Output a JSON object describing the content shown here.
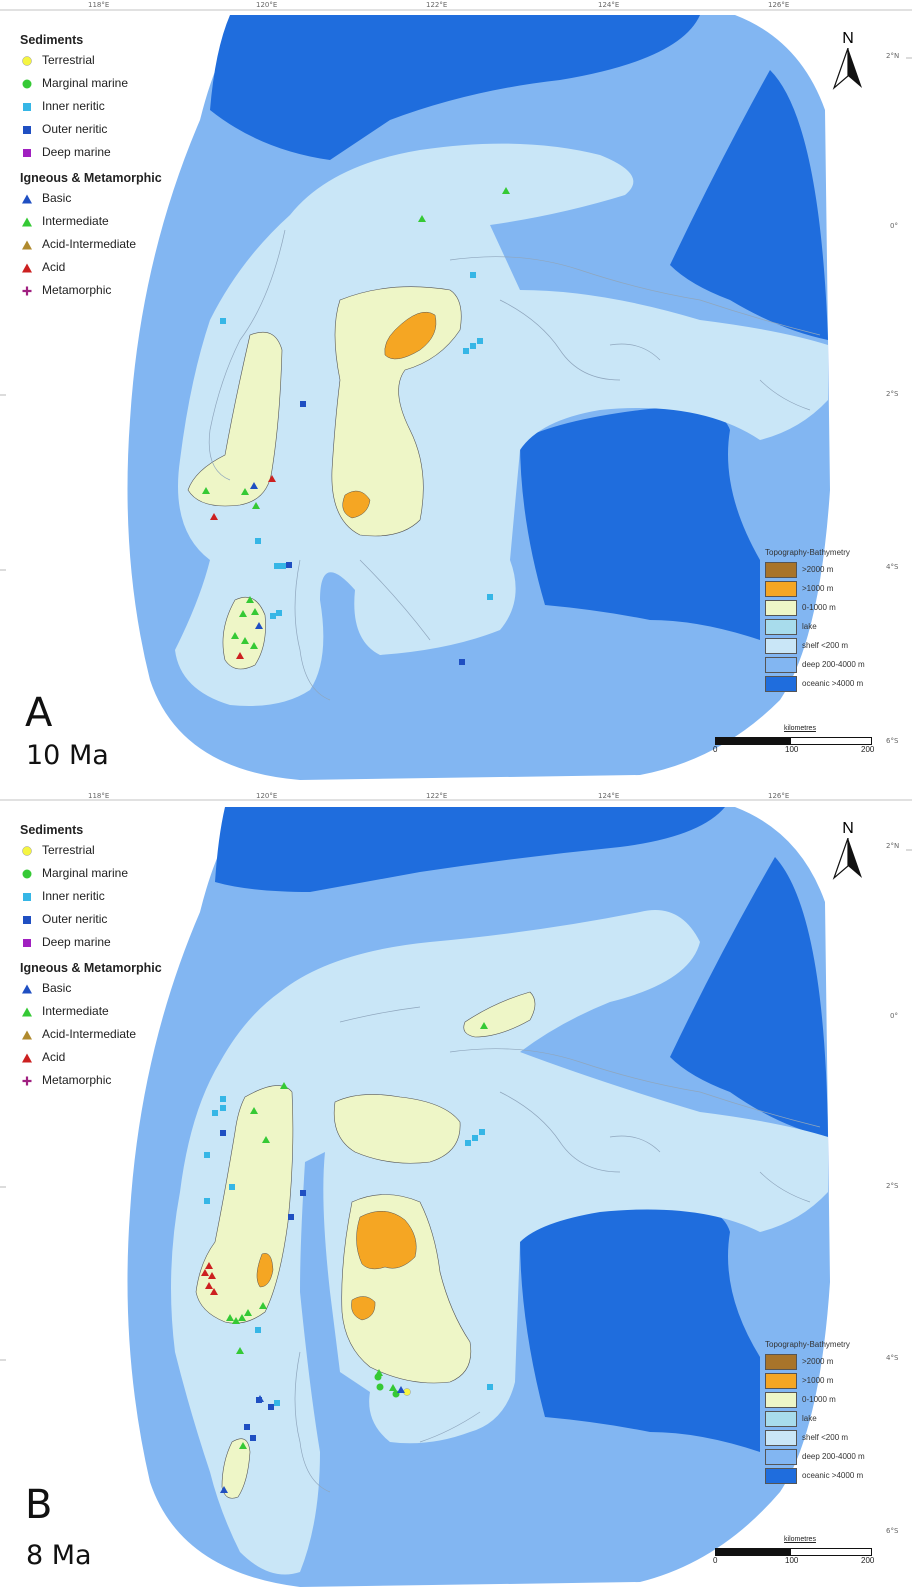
{
  "legend": {
    "sediments_title": "Sediments",
    "sediments": [
      {
        "label": "Terrestrial",
        "shape": "circle",
        "color": "#f5f542"
      },
      {
        "label": "Marginal marine",
        "shape": "circle",
        "color": "#35c935"
      },
      {
        "label": "Inner neritic",
        "shape": "square",
        "color": "#36b6e6"
      },
      {
        "label": "Outer neritic",
        "shape": "square",
        "color": "#1f4fc2"
      },
      {
        "label": "Deep marine",
        "shape": "square",
        "color": "#a020c0"
      }
    ],
    "igneous_title": "Igneous & Metamorphic",
    "igneous": [
      {
        "label": "Basic",
        "shape": "triangle",
        "color": "#1f4fc2"
      },
      {
        "label": "Intermediate",
        "shape": "triangle",
        "color": "#35c935"
      },
      {
        "label": "Acid-Intermediate",
        "shape": "triangle",
        "color": "#b08a2e"
      },
      {
        "label": "Acid",
        "shape": "triangle",
        "color": "#cc2020"
      },
      {
        "label": "Metamorphic",
        "shape": "plus",
        "color": "#a02080"
      }
    ]
  },
  "topography": {
    "title": "Topography-Bathymetry",
    "classes": [
      {
        "label": ">2000 m",
        "color": "#a8742a"
      },
      {
        "label": ">1000 m",
        "color": "#f5a623"
      },
      {
        "label": "0-1000 m",
        "color": "#eef6c7"
      },
      {
        "label": "lake",
        "color": "#a8dcec"
      },
      {
        "label": "shelf <200 m",
        "color": "#c9e6f7"
      },
      {
        "label": "deep 200-4000 m",
        "color": "#82b6f2"
      },
      {
        "label": "oceanic >4000 m",
        "color": "#1f6ddd"
      }
    ]
  },
  "scale_bar": {
    "title": "kilometres",
    "ticks": [
      "0",
      "100",
      "200"
    ]
  },
  "north_label": "N",
  "lon_ticks": [
    "118°E",
    "120°E",
    "122°E",
    "124°E",
    "126°E"
  ],
  "lat_ticks": [
    "2°N",
    "0°",
    "2°S",
    "4°S",
    "6°S"
  ],
  "panels": [
    {
      "letter": "A",
      "age": "10 Ma"
    },
    {
      "letter": "B",
      "age": "8 Ma"
    }
  ],
  "colors": {
    "oceanic": "#1f6ddd",
    "deep": "#82b6f2",
    "shelf": "#c9e6f7",
    "lowland": "#eef6c7",
    "highland": "#f5a623",
    "coast": "#8fa6bd"
  }
}
